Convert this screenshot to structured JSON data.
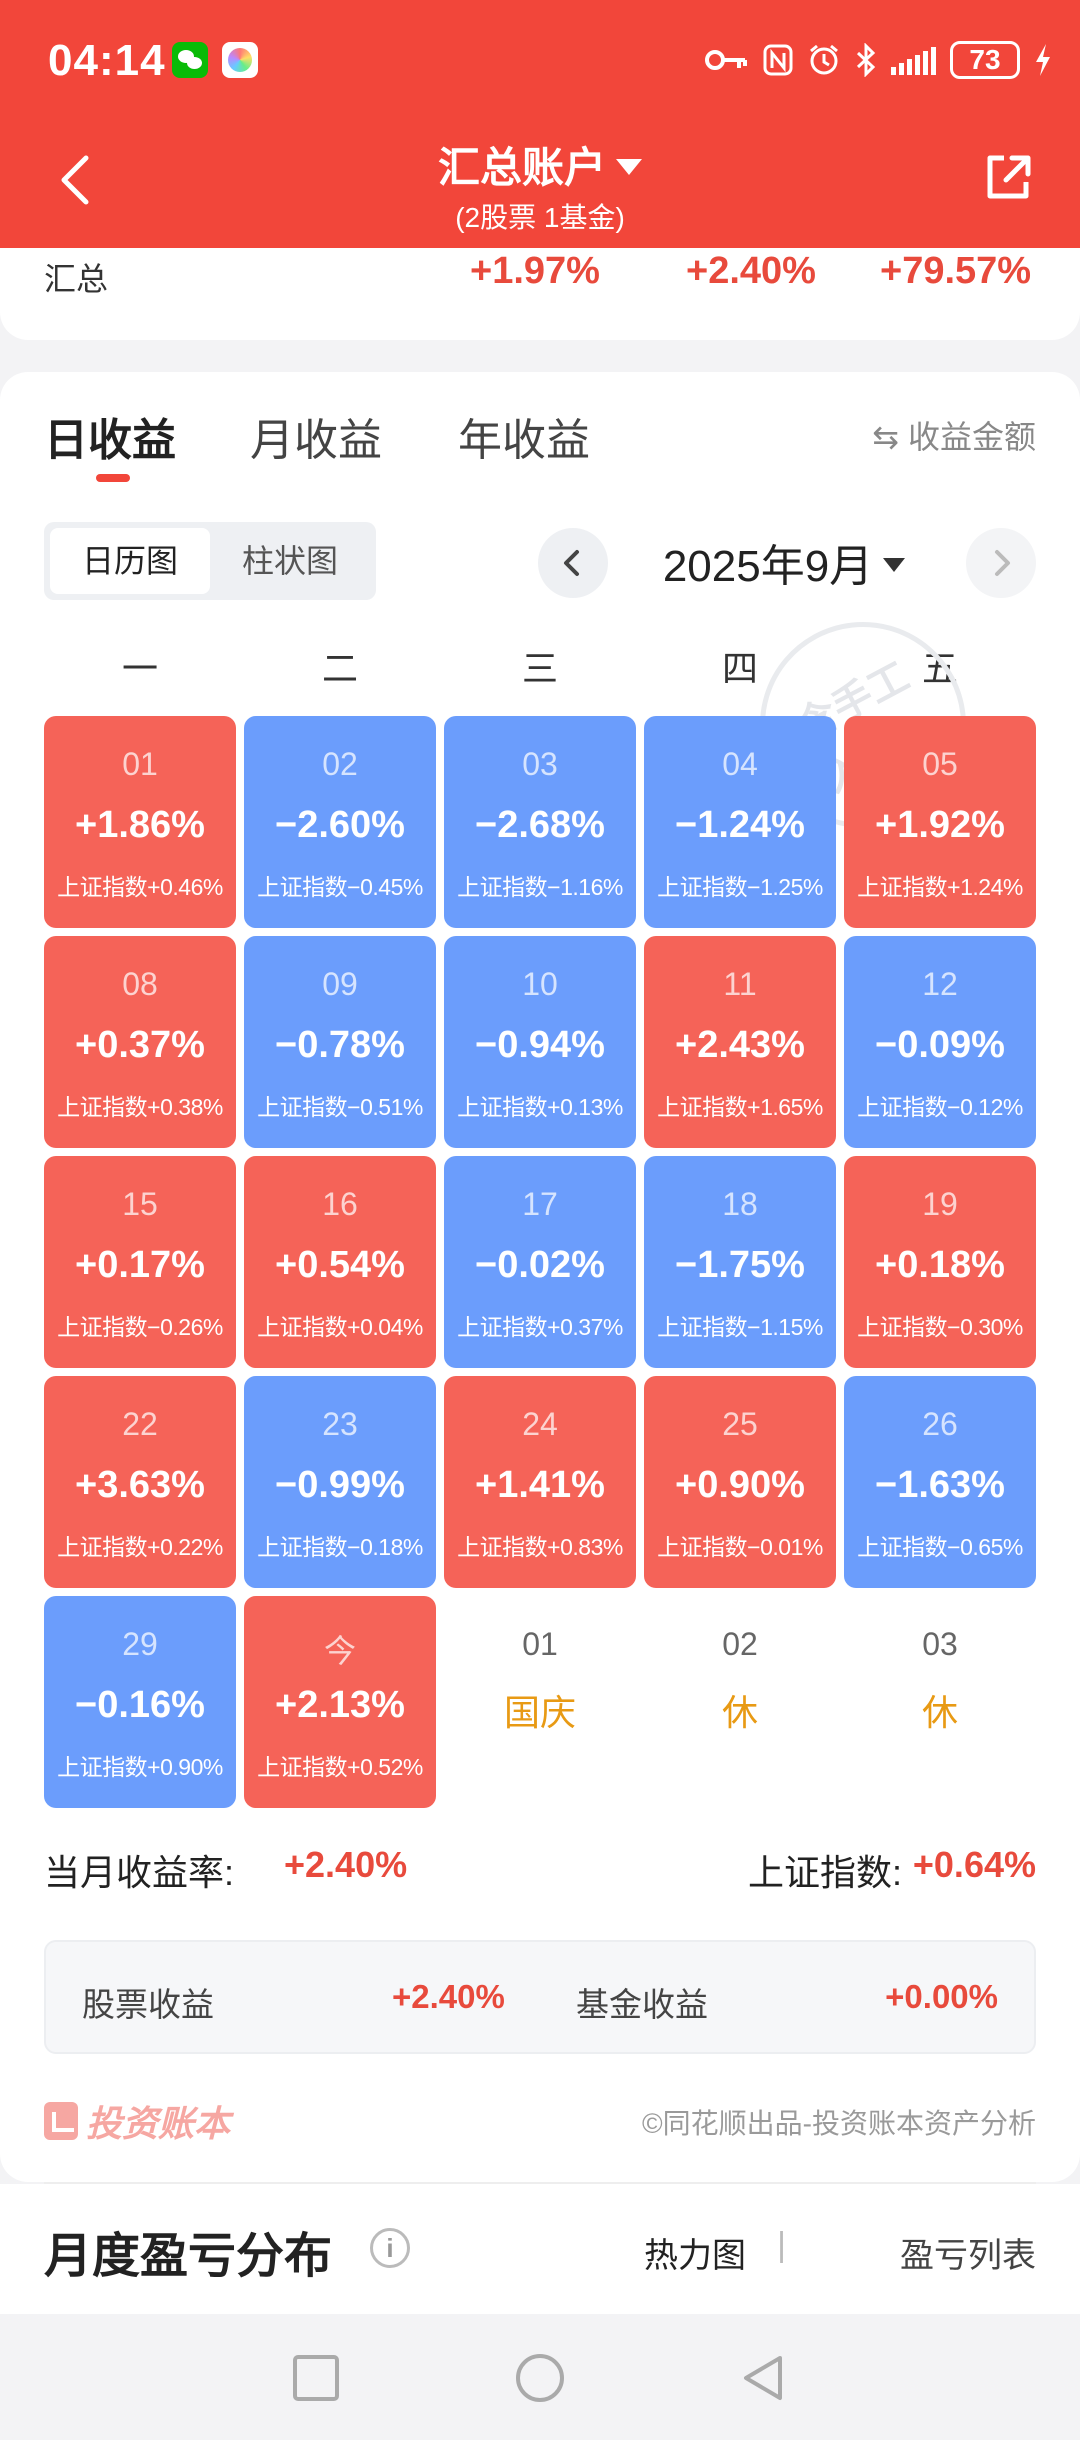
{
  "status_bar": {
    "time": "04:14",
    "battery": "73",
    "icons": [
      "wechat-icon",
      "album-icon",
      "key-icon",
      "nfc-icon",
      "alarm-icon",
      "bluetooth-icon",
      "signal-icon",
      "battery-icon",
      "charging-icon"
    ]
  },
  "nav": {
    "title": "汇总账户",
    "subtitle": "(2股票 1基金)"
  },
  "summary": {
    "label": "汇总",
    "values": [
      "+1.97%",
      "+2.40%",
      "+79.57%"
    ]
  },
  "tabs": [
    "日收益",
    "月收益",
    "年收益"
  ],
  "toggle_amount": "⇆ 收益金额",
  "view_switch": [
    "日历图",
    "柱状图"
  ],
  "month": "2025年9月",
  "weekdays": [
    "一",
    "二",
    "三",
    "四",
    "五"
  ],
  "watermark": "包含手工录入",
  "calendar": [
    [
      {
        "day": "01",
        "pct": "+1.86%",
        "idx": "上证指数+0.46%",
        "trend": "up"
      },
      {
        "day": "02",
        "pct": "−2.60%",
        "idx": "上证指数−0.45%",
        "trend": "down"
      },
      {
        "day": "03",
        "pct": "−2.68%",
        "idx": "上证指数−1.16%",
        "trend": "down"
      },
      {
        "day": "04",
        "pct": "−1.24%",
        "idx": "上证指数−1.25%",
        "trend": "down"
      },
      {
        "day": "05",
        "pct": "+1.92%",
        "idx": "上证指数+1.24%",
        "trend": "up"
      }
    ],
    [
      {
        "day": "08",
        "pct": "+0.37%",
        "idx": "上证指数+0.38%",
        "trend": "up"
      },
      {
        "day": "09",
        "pct": "−0.78%",
        "idx": "上证指数−0.51%",
        "trend": "down"
      },
      {
        "day": "10",
        "pct": "−0.94%",
        "idx": "上证指数+0.13%",
        "trend": "down"
      },
      {
        "day": "11",
        "pct": "+2.43%",
        "idx": "上证指数+1.65%",
        "trend": "up"
      },
      {
        "day": "12",
        "pct": "−0.09%",
        "idx": "上证指数−0.12%",
        "trend": "down"
      }
    ],
    [
      {
        "day": "15",
        "pct": "+0.17%",
        "idx": "上证指数−0.26%",
        "trend": "up"
      },
      {
        "day": "16",
        "pct": "+0.54%",
        "idx": "上证指数+0.04%",
        "trend": "up"
      },
      {
        "day": "17",
        "pct": "−0.02%",
        "idx": "上证指数+0.37%",
        "trend": "down"
      },
      {
        "day": "18",
        "pct": "−1.75%",
        "idx": "上证指数−1.15%",
        "trend": "down"
      },
      {
        "day": "19",
        "pct": "+0.18%",
        "idx": "上证指数−0.30%",
        "trend": "up"
      }
    ],
    [
      {
        "day": "22",
        "pct": "+3.63%",
        "idx": "上证指数+0.22%",
        "trend": "up"
      },
      {
        "day": "23",
        "pct": "−0.99%",
        "idx": "上证指数−0.18%",
        "trend": "down"
      },
      {
        "day": "24",
        "pct": "+1.41%",
        "idx": "上证指数+0.83%",
        "trend": "up"
      },
      {
        "day": "25",
        "pct": "+0.90%",
        "idx": "上证指数−0.01%",
        "trend": "up"
      },
      {
        "day": "26",
        "pct": "−1.63%",
        "idx": "上证指数−0.65%",
        "trend": "down"
      }
    ],
    [
      {
        "day": "29",
        "pct": "−0.16%",
        "idx": "上证指数+0.90%",
        "trend": "down"
      },
      {
        "day": "今",
        "pct": "+2.13%",
        "idx": "上证指数+0.52%",
        "trend": "up"
      },
      {
        "day": "01",
        "holiday": "国庆",
        "trend": "none"
      },
      {
        "day": "02",
        "holiday": "休",
        "trend": "none"
      },
      {
        "day": "03",
        "holiday": "休",
        "trend": "none"
      }
    ]
  ],
  "month_summary": {
    "rate_label": "当月收益率:",
    "rate_value": "+2.40%",
    "index_label": "上证指数:",
    "index_value": "+0.64%"
  },
  "income": {
    "stock_label": "股票收益",
    "stock_value": "+2.40%",
    "fund_label": "基金收益",
    "fund_value": "+0.00%"
  },
  "brand": {
    "name": "投资账本",
    "copyright": "©同花顺出品-投资账本资产分析"
  },
  "distribution": {
    "title": "月度盈亏分布",
    "option1": "热力图",
    "separator": "|",
    "option2": "盈亏列表"
  },
  "colors": {
    "header": "#f2463a",
    "up": "#f56358",
    "down": "#6b9dfc",
    "holiday": "#e89a14",
    "positive_text": "#e84a3c"
  }
}
